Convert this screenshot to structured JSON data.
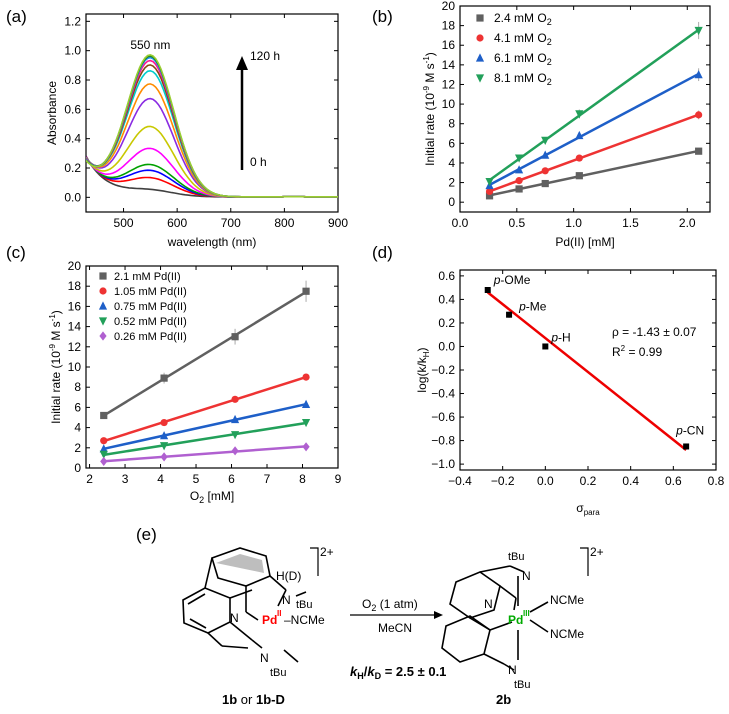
{
  "panel_labels": [
    "(a)",
    "(b)",
    "(c)",
    "(d)",
    "(e)"
  ],
  "chart_data": [
    {
      "panel": "(a)",
      "type": "line",
      "xlabel": "wavelength (nm)",
      "ylabel": "Absorbance",
      "xlim": [
        430,
        900
      ],
      "ylim": [
        -0.1,
        1.25
      ],
      "xticks": [
        500,
        600,
        700,
        800,
        900
      ],
      "yticks": [
        0.0,
        0.2,
        0.4,
        0.6,
        0.8,
        1.0,
        1.2
      ],
      "annotations": {
        "peak": "550 nm",
        "time_top": "120 h",
        "time_bottom": "0 h"
      },
      "series_colors": [
        "#404040",
        "#ff0000",
        "#0000ff",
        "#00a000",
        "#ff00ff",
        "#c8c800",
        "#8a2be2",
        "#ff8c00",
        "#00cccc",
        "#8b4513",
        "#ff1493",
        "#1e90ff",
        "#228b22",
        "#9acd32"
      ],
      "peak_absorbances": [
        0.04,
        0.12,
        0.17,
        0.21,
        0.32,
        0.47,
        0.66,
        0.76,
        0.85,
        0.89,
        0.92,
        0.94,
        0.95,
        0.96
      ]
    },
    {
      "panel": "(b)",
      "type": "scatter",
      "xlabel": "Pd(II) [mM]",
      "ylabel": "Initial rate (10",
      "ylabel_sup1": "-9",
      "ylabel_mid": " M s",
      "ylabel_sup2": "-1",
      "ylabel_end": ")",
      "xlim": [
        0.0,
        2.2
      ],
      "ylim": [
        -1,
        20
      ],
      "xticks": [
        0.0,
        0.5,
        1.0,
        1.5,
        2.0
      ],
      "xtick_labels": [
        "0.0",
        "0.5",
        "1.0",
        "1.5",
        "2.0"
      ],
      "yticks": [
        0,
        2,
        4,
        6,
        8,
        10,
        12,
        14,
        16,
        18,
        20
      ],
      "x": [
        0.26,
        0.52,
        0.75,
        1.05,
        2.1
      ],
      "series": [
        {
          "name": "2.4 mM O",
          "sub": "2",
          "color": "#606060",
          "marker": "square",
          "values": [
            0.65,
            1.35,
            1.9,
            2.7,
            5.2
          ]
        },
        {
          "name": "4.1 mM O",
          "sub": "2",
          "color": "#ee3333",
          "marker": "circle",
          "values": [
            1.1,
            2.2,
            3.2,
            4.5,
            8.9
          ]
        },
        {
          "name": "6.1 mM O",
          "sub": "2",
          "color": "#1e5fc8",
          "marker": "triangle-up",
          "values": [
            1.7,
            3.3,
            4.8,
            6.8,
            13.0
          ]
        },
        {
          "name": "8.1 mM O",
          "sub": "2",
          "color": "#22a05a",
          "marker": "triangle-down",
          "values": [
            2.1,
            4.5,
            6.3,
            9.0,
            17.5
          ]
        }
      ]
    },
    {
      "panel": "(c)",
      "type": "scatter",
      "xlabel": "O",
      "xlabel_sub": "2",
      "xlabel_end": " [mM]",
      "ylabel": "Initial rate (10",
      "ylabel_sup1": "-9",
      "ylabel_mid": " M s",
      "ylabel_sup2": "-1",
      "ylabel_end": ")",
      "xlim": [
        1.9,
        9.0
      ],
      "ylim": [
        0,
        20
      ],
      "xticks": [
        2,
        3,
        4,
        5,
        6,
        7,
        8,
        9
      ],
      "yticks": [
        0,
        2,
        4,
        6,
        8,
        10,
        12,
        14,
        16,
        18,
        20
      ],
      "x": [
        2.4,
        4.1,
        6.1,
        8.1
      ],
      "series": [
        {
          "name": "2.1 mM Pd(II)",
          "color": "#606060",
          "marker": "square",
          "values": [
            5.2,
            8.9,
            13.0,
            17.5
          ]
        },
        {
          "name": "1.05 mM Pd(II)",
          "color": "#ee3333",
          "marker": "circle",
          "values": [
            2.7,
            4.5,
            6.8,
            9.0
          ]
        },
        {
          "name": "0.75 mM Pd(II)",
          "color": "#1e5fc8",
          "marker": "triangle-up",
          "values": [
            1.9,
            3.2,
            4.8,
            6.3
          ]
        },
        {
          "name": "0.52 mM Pd(II)",
          "color": "#22a05a",
          "marker": "triangle-down",
          "values": [
            1.35,
            2.2,
            3.3,
            4.5
          ]
        },
        {
          "name": "0.26 mM Pd(II)",
          "color": "#b060d0",
          "marker": "diamond",
          "values": [
            0.65,
            1.1,
            1.7,
            2.1
          ]
        }
      ]
    },
    {
      "panel": "(d)",
      "type": "scatter",
      "xlabel": "σ",
      "xlabel_sub": "para",
      "ylabel": "log(k/k",
      "ylabel_sub": "H",
      "ylabel_end": ")",
      "xlim": [
        -0.4,
        0.8
      ],
      "ylim": [
        -1.05,
        0.65
      ],
      "xticks": [
        -0.4,
        -0.2,
        0.0,
        0.2,
        0.4,
        0.6,
        0.8
      ],
      "xtick_labels": [
        "−0.4",
        "−0.2",
        "0.0",
        "0.2",
        "0.4",
        "0.6",
        "0.8"
      ],
      "yticks": [
        -1.0,
        -0.8,
        -0.6,
        -0.4,
        -0.2,
        0.0,
        0.2,
        0.4,
        0.6
      ],
      "ytick_labels": [
        "−1.0",
        "−0.8",
        "−0.6",
        "−0.4",
        "−0.2",
        "0.0",
        "0.2",
        "0.4",
        "0.6"
      ],
      "points": [
        {
          "label": "-OMe",
          "x": -0.27,
          "y": 0.48
        },
        {
          "label": "-Me",
          "x": -0.17,
          "y": 0.27
        },
        {
          "label": "-H",
          "x": 0.0,
          "y": 0.0
        },
        {
          "label": "-CN",
          "x": 0.66,
          "y": -0.85
        }
      ],
      "label_prefix": "p",
      "fit": {
        "x": [
          -0.27,
          0.66
        ],
        "y": [
          0.46,
          -0.88
        ],
        "color": "#ee0000"
      },
      "fit_text_1": "ρ = -1.43 ± 0.07",
      "fit_text_2": "R",
      "fit_text_2_sup": "2",
      "fit_text_2_end": " = 0.99"
    }
  ],
  "scheme": {
    "charge": "2+",
    "reactant_label_a": "1b",
    "reactant_label_or": " or ",
    "reactant_label_b": "1b-D",
    "product_label": "2b",
    "condition_top_1": "O",
    "condition_top_sub": "2",
    "condition_top_2": " (1 atm)",
    "condition_bottom": "MeCN",
    "kie_k": "k",
    "kie_h": "H",
    "kie_slash": "/",
    "kie_d": "D",
    "kie_value": " = 2.5 ± 0.1",
    "reactant_atoms": {
      "hd": "H(D)",
      "n_top": "N",
      "tbu_top": "tBu",
      "n_py": "N",
      "pd": "Pd",
      "pd_ox": "II",
      "ncme": "–NCMe",
      "n_bottom": "N",
      "tbu_bottom": "tBu"
    },
    "product_atoms": {
      "tbu_top": "tBu",
      "n_top": "N",
      "n_py": "N",
      "pd": "Pd",
      "pd_ox": "III",
      "ncme1": "NCMe",
      "ncme2": "NCMe",
      "n_bottom": "N",
      "tbu_bottom": "tBu"
    }
  }
}
